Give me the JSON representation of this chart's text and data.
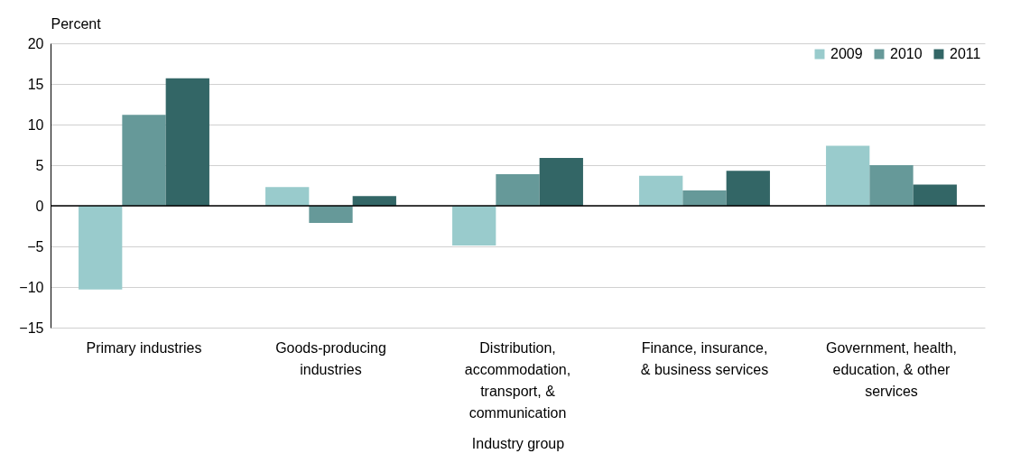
{
  "chart_data": {
    "type": "bar",
    "xlabel": "Industry group",
    "ylabel": "Percent",
    "categories": [
      "Primary industries",
      "Goods-producing industries",
      "Distribution, accommodation, transport, & communication",
      "Finance, insurance, & business services",
      "Government, health, education, & other services"
    ],
    "series": [
      {
        "name": "2009",
        "color": "#99cbcc",
        "values": [
          -10.3,
          2.3,
          -4.9,
          3.7,
          7.4
        ]
      },
      {
        "name": "2010",
        "color": "#669999",
        "values": [
          11.2,
          -2.1,
          3.9,
          1.9,
          5.0
        ]
      },
      {
        "name": "2011",
        "color": "#336666",
        "values": [
          15.7,
          1.2,
          5.9,
          4.3,
          2.6
        ]
      }
    ],
    "ylim": [
      -15,
      20
    ],
    "yticks": [
      -15,
      -10,
      -5,
      0,
      5,
      10,
      15,
      20
    ],
    "grid": "y",
    "legend": "top right"
  }
}
